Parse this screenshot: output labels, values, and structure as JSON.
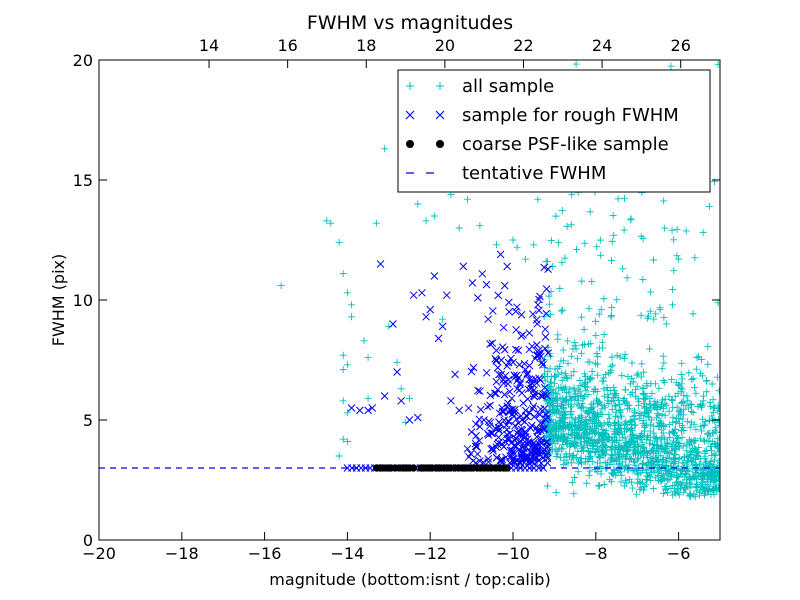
{
  "chart_data": {
    "type": "scatter",
    "title": "FWHM vs magnitudes",
    "xlabel": "magnitude (bottom:isnt / top:calib)",
    "ylabel": "FWHM (pix)",
    "xlim": [
      -20,
      -5
    ],
    "ylim": [
      0,
      20
    ],
    "x_ticks": [
      -20,
      -18,
      -16,
      -14,
      -12,
      -10,
      -8,
      -6
    ],
    "x_tick_labels": [
      "−20",
      "−18",
      "−16",
      "−14",
      "−12",
      "−10",
      "−8",
      "−6"
    ],
    "y_ticks": [
      0,
      5,
      10,
      15,
      20
    ],
    "y_tick_labels": [
      "0",
      "5",
      "10",
      "15",
      "20"
    ],
    "top_xlim": [
      11.2,
      27.0
    ],
    "top_x_ticks": [
      14,
      16,
      18,
      20,
      22,
      24,
      26
    ],
    "top_x_tick_labels": [
      "14",
      "16",
      "18",
      "20",
      "22",
      "24",
      "26"
    ],
    "grid": false,
    "legend_position": "top-right",
    "legend": [
      {
        "label": "all sample",
        "marker": "+",
        "color": "#00bfbf"
      },
      {
        "label": "sample for rough FWHM",
        "marker": "x",
        "color": "#0000ff"
      },
      {
        "label": "coarse PSF-like sample",
        "marker": "o",
        "color": "#000000"
      },
      {
        "label": "tentative FWHM",
        "marker": "dashed-line",
        "color": "#0000ff"
      }
    ],
    "colors": {
      "all_sample": "#00bfbf",
      "rough_sample": "#0000ff",
      "psf_sample": "#000000",
      "tentative_line": "#0000ff"
    },
    "tentative_fwhm": 3.0,
    "series": [
      {
        "name": "all sample",
        "marker": "+",
        "points": [
          [
            -15.6,
            10.6
          ],
          [
            -14.5,
            13.3
          ],
          [
            -14.4,
            13.2
          ],
          [
            -14.2,
            12.4
          ],
          [
            -14.1,
            11.1
          ],
          [
            -14.0,
            10.3
          ],
          [
            -14.1,
            7.7
          ],
          [
            -14.0,
            7.3
          ],
          [
            -14.1,
            7.1
          ],
          [
            -14.1,
            5.8
          ],
          [
            -14.0,
            5.3
          ],
          [
            -14.1,
            4.2
          ],
          [
            -14.0,
            4.1
          ],
          [
            -14.2,
            3.5
          ],
          [
            -13.9,
            9.8
          ],
          [
            -13.9,
            9.3
          ],
          [
            -13.6,
            8.3
          ],
          [
            -13.5,
            7.6
          ],
          [
            -13.5,
            5.9
          ],
          [
            -13.3,
            13.2
          ],
          [
            -13.1,
            16.3
          ],
          [
            -13.0,
            8.9
          ],
          [
            -12.8,
            7.4
          ],
          [
            -12.7,
            6.3
          ],
          [
            -12.6,
            4.9
          ],
          [
            -12.5,
            5.9
          ],
          [
            -12.3,
            14.0
          ],
          [
            -12.2,
            15.6
          ],
          [
            -12.1,
            13.3
          ],
          [
            -11.9,
            13.5
          ],
          [
            -11.7,
            9.2
          ],
          [
            -11.5,
            14.4
          ],
          [
            -11.4,
            15.7
          ],
          [
            -11.3,
            13.0
          ],
          [
            -11.1,
            14.2
          ],
          [
            -11.0,
            16.3
          ],
          [
            -10.8,
            13.1
          ],
          [
            -10.7,
            15.0
          ],
          [
            -10.5,
            16.1
          ],
          [
            -10.4,
            12.3
          ],
          [
            -10.2,
            16.3
          ],
          [
            -10.0,
            12.5
          ],
          [
            -9.9,
            12.2
          ],
          [
            -9.7,
            11.7
          ],
          [
            -9.5,
            12.3
          ],
          [
            -9.4,
            14.2
          ],
          [
            -9.2,
            11.6
          ]
        ]
      },
      {
        "name": "sample for rough FWHM",
        "marker": "x",
        "points": [
          [
            -13.9,
            5.5
          ],
          [
            -13.7,
            5.4
          ],
          [
            -13.5,
            5.4
          ],
          [
            -13.4,
            5.5
          ],
          [
            -13.2,
            11.5
          ],
          [
            -13.1,
            6.0
          ],
          [
            -12.9,
            9.0
          ],
          [
            -12.8,
            7.0
          ],
          [
            -12.7,
            5.8
          ],
          [
            -12.5,
            5.0
          ],
          [
            -12.4,
            10.2
          ],
          [
            -12.3,
            5.1
          ],
          [
            -12.2,
            10.3
          ],
          [
            -12.1,
            9.3
          ],
          [
            -12.0,
            9.6
          ],
          [
            -11.9,
            11.0
          ],
          [
            -11.8,
            8.4
          ],
          [
            -11.7,
            8.9
          ],
          [
            -11.6,
            10.2
          ],
          [
            -11.5,
            5.8
          ],
          [
            -11.4,
            6.9
          ],
          [
            -11.3,
            5.4
          ],
          [
            -11.2,
            11.4
          ],
          [
            -11.1,
            3.8
          ],
          [
            -11.0,
            4.5
          ],
          [
            -10.9,
            3.9
          ],
          [
            -10.8,
            6.2
          ],
          [
            -10.7,
            5.0
          ],
          [
            -10.6,
            9.2
          ],
          [
            -10.5,
            8.2
          ],
          [
            -10.4,
            7.5
          ],
          [
            -10.3,
            11.9
          ],
          [
            -10.2,
            10.6
          ],
          [
            -10.1,
            9.9
          ],
          [
            -10.0,
            7.4
          ],
          [
            -9.9,
            6.3
          ],
          [
            -9.8,
            8.5
          ],
          [
            -9.7,
            7.1
          ],
          [
            -9.6,
            5.3
          ],
          [
            -9.5,
            6.0
          ],
          [
            -9.4,
            9.8
          ],
          [
            -9.3,
            7.4
          ]
        ]
      },
      {
        "name": "coarse PSF-like sample",
        "marker": "o",
        "points": [
          [
            -13.2,
            3.0
          ],
          [
            -13.0,
            3.0
          ],
          [
            -12.6,
            3.0
          ],
          [
            -12.2,
            3.0
          ],
          [
            -12.0,
            3.0
          ],
          [
            -11.8,
            3.0
          ],
          [
            -11.6,
            3.0
          ],
          [
            -11.4,
            3.0
          ],
          [
            -11.2,
            3.0
          ],
          [
            -11.0,
            3.0
          ],
          [
            -10.8,
            3.0
          ],
          [
            -10.6,
            3.0
          ],
          [
            -10.4,
            3.0
          ],
          [
            -10.2,
            3.0
          ]
        ]
      }
    ]
  }
}
